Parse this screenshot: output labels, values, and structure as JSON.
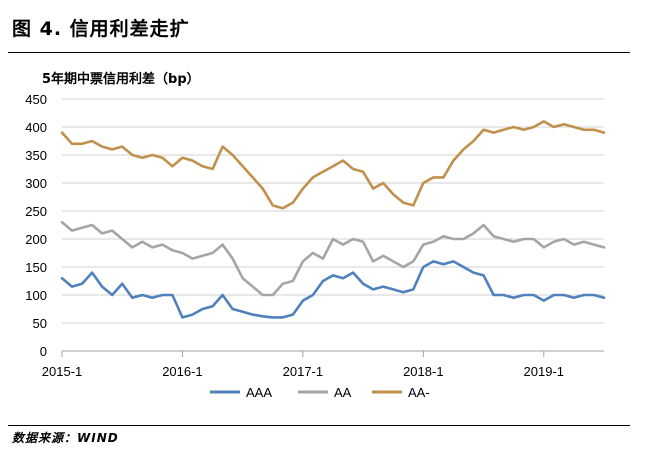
{
  "figure": {
    "title": "图 4.   信用利差走扩",
    "source": "数据来源：WIND"
  },
  "chart_data": {
    "type": "line",
    "title": "5年期中票信用利差（bp）",
    "xlabel": "",
    "ylabel": "",
    "x_tick_labels": [
      "2015-1",
      "2016-1",
      "2017-1",
      "2018-1",
      "2019-1"
    ],
    "x_ticks": [
      "2015-01",
      "2016-01",
      "2017-01",
      "2018-01",
      "2019-01"
    ],
    "x_range": [
      "2015-01",
      "2019-07"
    ],
    "ylim": [
      0,
      450
    ],
    "yticks": [
      0,
      50,
      100,
      150,
      200,
      250,
      300,
      350,
      400,
      450
    ],
    "grid": "horizontal",
    "legend_position": "bottom",
    "x": [
      "2015-01",
      "2015-02",
      "2015-03",
      "2015-04",
      "2015-05",
      "2015-06",
      "2015-07",
      "2015-08",
      "2015-09",
      "2015-10",
      "2015-11",
      "2015-12",
      "2016-01",
      "2016-02",
      "2016-03",
      "2016-04",
      "2016-05",
      "2016-06",
      "2016-07",
      "2016-08",
      "2016-09",
      "2016-10",
      "2016-11",
      "2016-12",
      "2017-01",
      "2017-02",
      "2017-03",
      "2017-04",
      "2017-05",
      "2017-06",
      "2017-07",
      "2017-08",
      "2017-09",
      "2017-10",
      "2017-11",
      "2017-12",
      "2018-01",
      "2018-02",
      "2018-03",
      "2018-04",
      "2018-05",
      "2018-06",
      "2018-07",
      "2018-08",
      "2018-09",
      "2018-10",
      "2018-11",
      "2018-12",
      "2019-01",
      "2019-02",
      "2019-03",
      "2019-04",
      "2019-05",
      "2019-06",
      "2019-07"
    ],
    "series": [
      {
        "name": "AAA",
        "color": "#4f81bd",
        "values": [
          130,
          115,
          120,
          140,
          115,
          100,
          120,
          95,
          100,
          95,
          100,
          100,
          60,
          65,
          75,
          80,
          100,
          75,
          70,
          65,
          62,
          60,
          60,
          65,
          90,
          100,
          125,
          135,
          130,
          140,
          120,
          110,
          115,
          110,
          105,
          110,
          150,
          160,
          155,
          160,
          150,
          140,
          135,
          100,
          100,
          95,
          100,
          100,
          90,
          100,
          100,
          95,
          100,
          100,
          95
        ]
      },
      {
        "name": "AA",
        "color": "#a5a5a5",
        "values": [
          230,
          215,
          220,
          225,
          210,
          215,
          200,
          185,
          195,
          185,
          190,
          180,
          175,
          165,
          170,
          175,
          190,
          165,
          130,
          115,
          100,
          100,
          120,
          125,
          160,
          175,
          165,
          200,
          190,
          200,
          195,
          160,
          170,
          160,
          150,
          160,
          190,
          195,
          205,
          200,
          200,
          210,
          225,
          205,
          200,
          195,
          200,
          200,
          185,
          195,
          200,
          190,
          195,
          190,
          185
        ]
      },
      {
        "name": "AA-",
        "color": "#c0904c",
        "values": [
          390,
          370,
          370,
          375,
          365,
          360,
          365,
          350,
          345,
          350,
          345,
          330,
          345,
          340,
          330,
          325,
          365,
          350,
          330,
          310,
          290,
          260,
          255,
          265,
          290,
          310,
          320,
          330,
          340,
          325,
          320,
          290,
          300,
          280,
          265,
          260,
          300,
          310,
          310,
          340,
          360,
          375,
          395,
          390,
          395,
          400,
          395,
          400,
          410,
          400,
          405,
          400,
          395,
          395,
          390
        ]
      }
    ]
  }
}
